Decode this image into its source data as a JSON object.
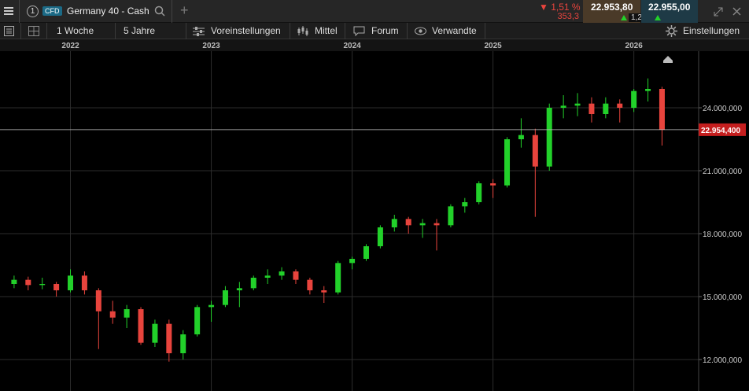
{
  "toolbar": {
    "menu_number": "1",
    "badge": "CFD",
    "instrument": "Germany 40 - Cash",
    "change_pct": "▼ 1,51 %",
    "change_abs": "353,3",
    "bid": "22.953,80",
    "spread": "1,20",
    "ask": "22.955,00",
    "interval": "1 Woche",
    "range": "5 Jahre",
    "presets": "Voreinstellungen",
    "indicator": "Mittel",
    "forum": "Forum",
    "related": "Verwandte",
    "settings": "Einstellungen"
  },
  "chart_data": {
    "type": "candlestick",
    "x": [
      2021.6,
      2021.7,
      2021.8,
      2021.9,
      2022.0,
      2022.1,
      2022.2,
      2022.3,
      2022.4,
      2022.5,
      2022.6,
      2022.7,
      2022.8,
      2022.9,
      2023.0,
      2023.1,
      2023.2,
      2023.3,
      2023.4,
      2023.5,
      2023.6,
      2023.7,
      2023.8,
      2023.9,
      2024.0,
      2024.1,
      2024.2,
      2024.3,
      2024.4,
      2024.5,
      2024.6,
      2024.7,
      2024.8,
      2024.9,
      2025.0,
      2025.1,
      2025.2,
      2025.3,
      2025.4,
      2025.5,
      2025.6,
      2025.7,
      2025.8,
      2025.9,
      2026.0,
      2026.1,
      2026.2
    ],
    "open": [
      15600,
      15800,
      15550,
      15600,
      15300,
      16000,
      15300,
      14300,
      14000,
      14400,
      12800,
      13700,
      12300,
      13200,
      14500,
      14600,
      15300,
      15400,
      15900,
      16000,
      16200,
      15800,
      15300,
      15200,
      16600,
      16800,
      17400,
      18300,
      18700,
      18400,
      18500,
      18400,
      19300,
      19500,
      20400,
      20300,
      22500,
      22700,
      21200,
      24000,
      24100,
      24200,
      23700,
      24200,
      24000,
      24800,
      24900
    ],
    "high": [
      16000,
      15950,
      15900,
      15700,
      16300,
      16200,
      15400,
      14800,
      14600,
      14500,
      13900,
      13900,
      13400,
      14600,
      14800,
      15500,
      15700,
      16000,
      16300,
      16400,
      16300,
      15900,
      15500,
      16700,
      16900,
      17500,
      18400,
      18900,
      18800,
      18700,
      18700,
      19400,
      19700,
      20500,
      20600,
      22600,
      23500,
      23000,
      24200,
      24600,
      24700,
      24500,
      24500,
      24400,
      24900,
      25400,
      25000
    ],
    "low": [
      15400,
      15300,
      15350,
      15000,
      15200,
      15100,
      12500,
      13700,
      13500,
      12700,
      12600,
      11900,
      12000,
      13100,
      13800,
      14500,
      14500,
      15300,
      15600,
      15800,
      15600,
      15100,
      14700,
      15100,
      16300,
      16700,
      17300,
      18100,
      18000,
      17800,
      17200,
      18300,
      19000,
      19400,
      19700,
      20200,
      22100,
      18800,
      21000,
      23500,
      23600,
      23300,
      23500,
      23300,
      23800,
      24300,
      22200
    ],
    "close": [
      15800,
      15550,
      15600,
      15300,
      16000,
      15300,
      14300,
      14000,
      14400,
      12800,
      13700,
      12300,
      13200,
      14500,
      14600,
      15300,
      15400,
      15900,
      16000,
      16200,
      15800,
      15300,
      15200,
      16600,
      16800,
      17400,
      18300,
      18700,
      18400,
      18500,
      18400,
      19300,
      19500,
      20400,
      20300,
      22500,
      22700,
      21200,
      24000,
      24100,
      24200,
      23700,
      24200,
      24000,
      24800,
      24900,
      22954
    ],
    "up_color": "#22d12a",
    "down_color": "#e8443d",
    "xlim": [
      2021.5,
      2026.46
    ],
    "xticks": [
      2022,
      2023,
      2024,
      2025,
      2026
    ],
    "ylim": [
      10500,
      26700
    ],
    "yticks": [
      {
        "value": 12000,
        "label": "12.000,000"
      },
      {
        "value": 15000,
        "label": "15.000,000"
      },
      {
        "value": 18000,
        "label": "18.000,000"
      },
      {
        "value": 21000,
        "label": "21.000,000"
      },
      {
        "value": 24000,
        "label": "24.000,000"
      }
    ],
    "grid": true,
    "last_price": {
      "value": 22954.4,
      "label": "22.954,400"
    }
  }
}
